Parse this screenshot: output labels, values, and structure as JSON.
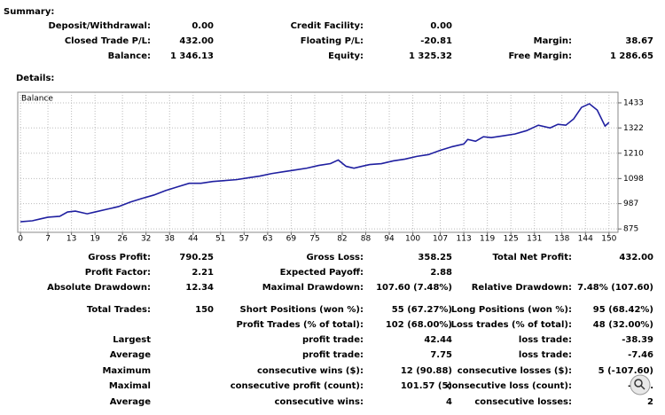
{
  "summary": {
    "title": "Summary:",
    "rows": [
      [
        [
          "Deposit/Withdrawal:",
          "0.00"
        ],
        [
          "Credit Facility:",
          "0.00"
        ],
        null
      ],
      [
        [
          "Closed Trade P/L:",
          "432.00"
        ],
        [
          "Floating P/L:",
          "-20.81"
        ],
        [
          "Margin:",
          "38.67"
        ]
      ],
      [
        [
          "Balance:",
          "1 346.13"
        ],
        [
          "Equity:",
          "1 325.32"
        ],
        [
          "Free Margin:",
          "1 286.65"
        ]
      ]
    ]
  },
  "details": {
    "title": "Details:",
    "rows": [
      [
        [
          "Gross Profit:",
          "790.25"
        ],
        [
          "Gross Loss:",
          "358.25"
        ],
        [
          "Total Net Profit:",
          "432.00"
        ]
      ],
      [
        [
          "Profit Factor:",
          "2.21"
        ],
        [
          "Expected Payoff:",
          "2.88"
        ],
        null
      ],
      [
        [
          "Absolute Drawdown:",
          "12.34"
        ],
        [
          "Maximal Drawdown:",
          "107.60 (7.48%)"
        ],
        [
          "Relative Drawdown:",
          "7.48% (107.60)"
        ]
      ],
      [
        [
          "Total Trades:",
          "150"
        ],
        [
          "Short Positions (won %):",
          "55 (67.27%)"
        ],
        [
          "Long Positions (won %):",
          "95 (68.42%)"
        ]
      ],
      [
        null,
        [
          "Profit Trades (% of total):",
          "102 (68.00%)"
        ],
        [
          "Loss trades (% of total):",
          "48 (32.00%)"
        ]
      ],
      [
        [
          "Largest",
          null
        ],
        [
          "profit trade:",
          "42.44"
        ],
        [
          "loss trade:",
          "-38.39"
        ]
      ],
      [
        [
          "Average",
          null
        ],
        [
          "profit trade:",
          "7.75"
        ],
        [
          "loss trade:",
          "-7.46"
        ]
      ],
      [
        [
          "Maximum",
          null
        ],
        [
          "consecutive wins ($):",
          "12 (90.88)"
        ],
        [
          "consecutive losses ($):",
          "5 (-107.60)"
        ]
      ],
      [
        [
          "Maximal",
          null
        ],
        [
          "consecutive profit (count):",
          "101.57 (5)"
        ],
        [
          "consecutive loss (count):",
          "-107."
        ]
      ],
      [
        [
          "Average",
          null
        ],
        [
          "consecutive wins:",
          "4"
        ],
        [
          "consecutive losses:",
          "2"
        ]
      ]
    ]
  },
  "chart_data": {
    "type": "line",
    "series": [
      {
        "name": "Balance",
        "color": "#1f1fa0",
        "x": [
          0,
          3,
          5,
          7,
          10,
          12,
          14,
          17,
          19,
          22,
          25,
          28,
          31,
          34,
          37,
          40,
          43,
          46,
          49,
          52,
          55,
          58,
          61,
          64,
          67,
          70,
          73,
          76,
          79,
          81,
          83,
          85,
          87,
          89,
          92,
          95,
          98,
          101,
          104,
          107,
          110,
          113,
          114,
          116,
          118,
          120,
          123,
          126,
          129,
          132,
          135,
          137,
          139,
          141,
          143,
          145,
          147,
          149,
          150
        ],
        "values": [
          907,
          911,
          919,
          927,
          931,
          950,
          954,
          942,
          950,
          962,
          974,
          994,
          1010,
          1025,
          1045,
          1061,
          1077,
          1077,
          1085,
          1089,
          1093,
          1101,
          1109,
          1120,
          1128,
          1136,
          1144,
          1156,
          1164,
          1180,
          1152,
          1144,
          1152,
          1160,
          1164,
          1176,
          1184,
          1196,
          1204,
          1223,
          1239,
          1251,
          1271,
          1263,
          1283,
          1279,
          1287,
          1295,
          1310,
          1334,
          1322,
          1338,
          1334,
          1362,
          1413,
          1429,
          1401,
          1330,
          1346
        ]
      }
    ],
    "xlim": [
      -0.7,
      152.3
    ],
    "ylim": [
      860,
      1480
    ],
    "xticks": [
      0,
      7,
      13,
      19,
      26,
      32,
      38,
      44,
      51,
      57,
      63,
      69,
      75,
      82,
      88,
      94,
      100,
      107,
      113,
      119,
      125,
      131,
      138,
      144,
      150
    ],
    "yticks": [
      875,
      987,
      1098,
      1210,
      1322,
      1433
    ],
    "grid": true
  }
}
